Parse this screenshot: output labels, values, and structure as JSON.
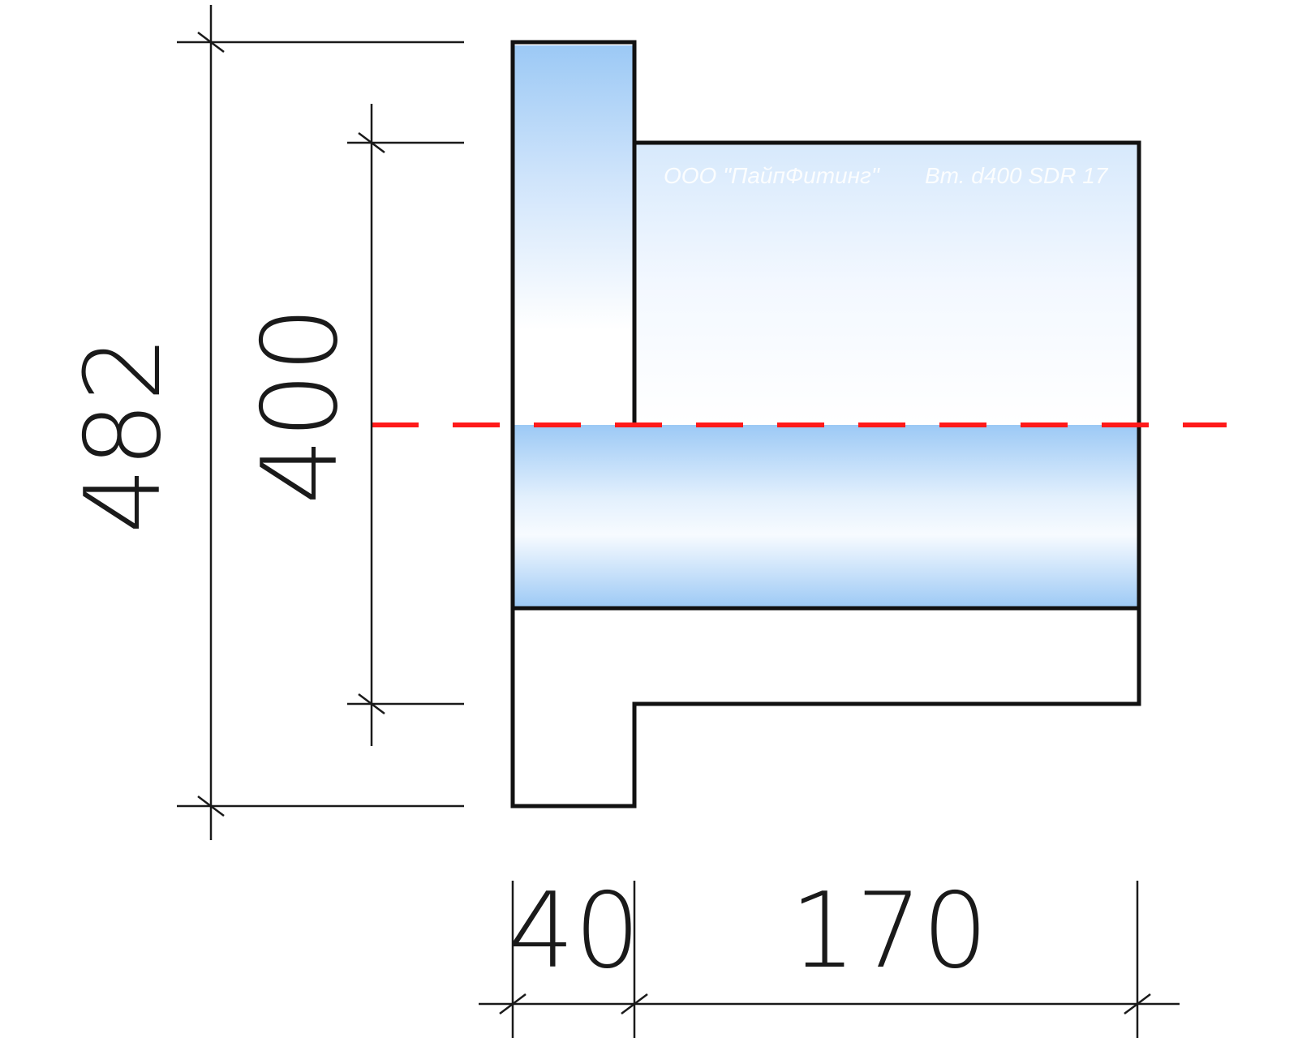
{
  "dimensions": {
    "overall_height": "482",
    "inner_diameter": "400",
    "flange_thickness": "40",
    "body_length": "170"
  },
  "marking": {
    "manufacturer": "ООО \"ПайпФитинг\"",
    "product": "Вт. d400 SDR 17"
  },
  "colors": {
    "outline": "#111111",
    "fill_blue": "#9cc9f5",
    "axis_line": "#ff1a1a"
  }
}
